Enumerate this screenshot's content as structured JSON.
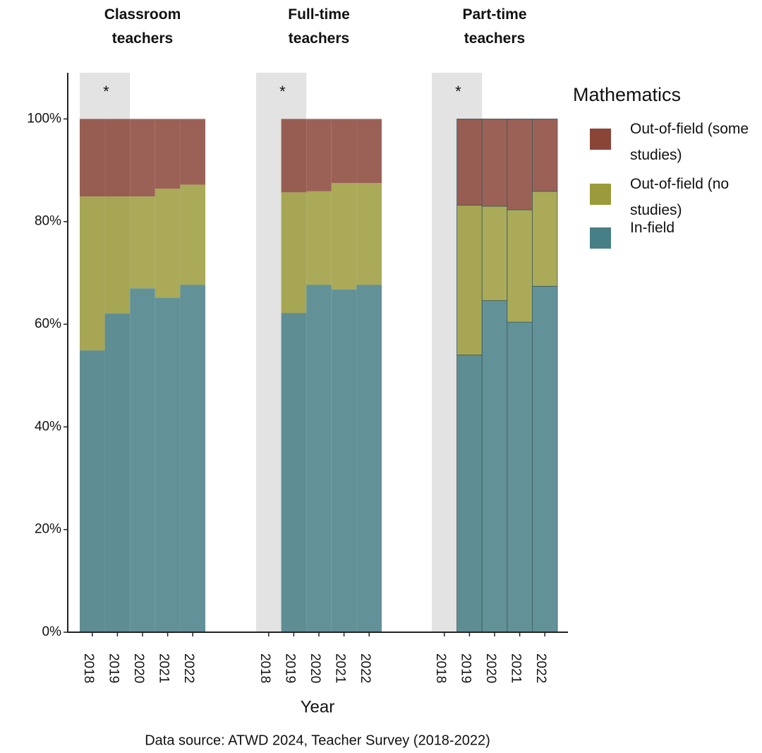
{
  "chart_data": {
    "type": "stacked_bar",
    "legend_title": "Mathematics",
    "x_label": "Year",
    "source": "Data source: ATWD 2024, Teacher Survey (2018-2022)",
    "ylim": [
      0,
      109
    ],
    "yticks": [
      {
        "value": 0,
        "label": "0%"
      },
      {
        "value": 20,
        "label": "20%"
      },
      {
        "value": 40,
        "label": "40%"
      },
      {
        "value": 60,
        "label": "60%"
      },
      {
        "value": 80,
        "label": "80%"
      },
      {
        "value": 100,
        "label": "100%"
      }
    ],
    "series": [
      {
        "name": "In-field",
        "color": "#477f86"
      },
      {
        "name": "Out-of-field (no studies)",
        "color": "#9b9b3c"
      },
      {
        "name": "Out-of-field (some studies)",
        "color": "#8b4538"
      }
    ],
    "facets": [
      {
        "title": "Classroom teachers",
        "annotation": "*",
        "categories": [
          "2018",
          "2019",
          "2020",
          "2021",
          "2022"
        ],
        "values": [
          [
            54.9,
            62.1,
            67.0,
            65.2,
            67.7
          ],
          [
            30.0,
            22.8,
            17.9,
            21.2,
            19.5
          ],
          [
            15.1,
            15.1,
            15.1,
            13.6,
            12.8
          ]
        ]
      },
      {
        "title": "Full-time teachers",
        "annotation": "*",
        "categories": [
          "2018",
          "2019",
          "2020",
          "2021",
          "2022"
        ],
        "values": [
          [
            null,
            62.2,
            67.7,
            66.8,
            67.7
          ],
          [
            null,
            23.5,
            18.2,
            20.7,
            19.8
          ],
          [
            null,
            14.3,
            14.1,
            12.5,
            12.5
          ]
        ]
      },
      {
        "title": "Part-time teachers",
        "annotation": "*",
        "categories": [
          "2018",
          "2019",
          "2020",
          "2021",
          "2022"
        ],
        "values": [
          [
            null,
            54.0,
            64.6,
            60.4,
            67.4
          ],
          [
            null,
            29.2,
            18.4,
            21.9,
            18.5
          ],
          [
            null,
            16.8,
            17.0,
            17.7,
            14.1
          ]
        ]
      }
    ]
  }
}
